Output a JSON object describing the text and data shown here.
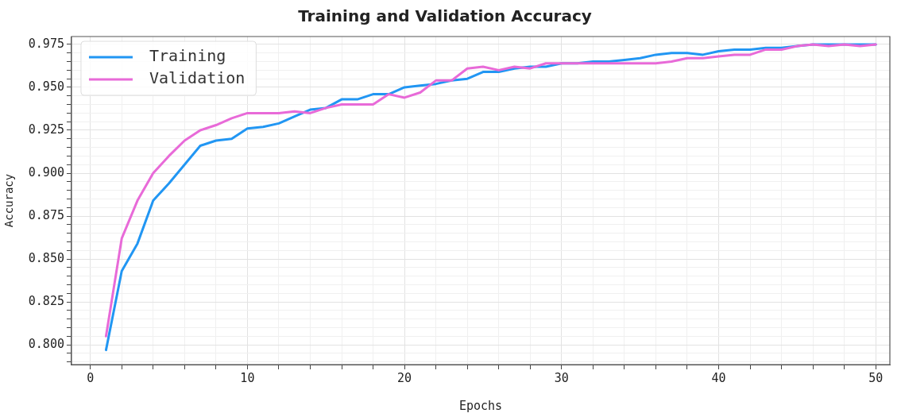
{
  "chart_data": {
    "type": "line",
    "title": "Training and Validation Accuracy",
    "xlabel": "Epochs",
    "ylabel": "Accuracy",
    "x": [
      1,
      2,
      3,
      4,
      5,
      6,
      7,
      8,
      9,
      10,
      11,
      12,
      13,
      14,
      15,
      16,
      17,
      18,
      19,
      20,
      21,
      22,
      23,
      24,
      25,
      26,
      27,
      28,
      29,
      30,
      31,
      32,
      33,
      34,
      35,
      36,
      37,
      38,
      39,
      40,
      41,
      42,
      43,
      44,
      45,
      46,
      47,
      48,
      49,
      50
    ],
    "series": [
      {
        "name": "Training",
        "color": "#2196f3",
        "values": [
          0.797,
          0.843,
          0.859,
          0.884,
          0.894,
          0.905,
          0.916,
          0.919,
          0.92,
          0.926,
          0.927,
          0.929,
          0.933,
          0.937,
          0.938,
          0.943,
          0.943,
          0.946,
          0.946,
          0.95,
          0.951,
          0.952,
          0.954,
          0.955,
          0.959,
          0.959,
          0.961,
          0.962,
          0.962,
          0.964,
          0.964,
          0.965,
          0.965,
          0.966,
          0.967,
          0.969,
          0.97,
          0.97,
          0.969,
          0.971,
          0.972,
          0.972,
          0.973,
          0.973,
          0.974,
          0.975,
          0.975,
          0.975,
          0.975,
          0.975
        ]
      },
      {
        "name": "Validation",
        "color": "#e86ad8",
        "values": [
          0.805,
          0.862,
          0.884,
          0.9,
          0.91,
          0.919,
          0.925,
          0.928,
          0.932,
          0.935,
          0.935,
          0.935,
          0.936,
          0.935,
          0.938,
          0.94,
          0.94,
          0.94,
          0.946,
          0.944,
          0.947,
          0.954,
          0.954,
          0.961,
          0.962,
          0.96,
          0.962,
          0.961,
          0.964,
          0.964,
          0.964,
          0.964,
          0.964,
          0.964,
          0.964,
          0.964,
          0.965,
          0.967,
          0.967,
          0.968,
          0.969,
          0.969,
          0.972,
          0.972,
          0.974,
          0.975,
          0.974,
          0.975,
          0.974,
          0.975
        ]
      }
    ],
    "xlim": [
      -1.2,
      50.9
    ],
    "xticks": [
      0,
      {
        "value": 2,
        "label": null
      },
      {
        "value": 4,
        "label": null
      },
      {
        "value": 6,
        "label": null
      },
      {
        "value": 8,
        "label": null
      },
      10,
      {
        "value": 12,
        "label": null
      },
      {
        "value": 14,
        "label": null
      },
      {
        "value": 16,
        "label": null
      },
      {
        "value": 18,
        "label": null
      },
      20,
      {
        "value": 22,
        "label": null
      },
      {
        "value": 24,
        "label": null
      },
      {
        "value": 26,
        "label": null
      },
      {
        "value": 28,
        "label": null
      },
      30,
      {
        "value": 32,
        "label": null
      },
      {
        "value": 34,
        "label": null
      },
      {
        "value": 36,
        "label": null
      },
      {
        "value": 38,
        "label": null
      },
      40,
      {
        "value": 42,
        "label": null
      },
      {
        "value": 44,
        "label": null
      },
      {
        "value": 46,
        "label": null
      },
      {
        "value": 48,
        "label": null
      },
      50
    ],
    "ylim": [
      0.7885,
      0.9796
    ],
    "yticks": [
      {
        "value": 0.79,
        "label": null
      },
      {
        "value": 0.795,
        "label": null
      },
      {
        "value": 0.8,
        "label": "0.800"
      },
      {
        "value": 0.805,
        "label": null
      },
      {
        "value": 0.81,
        "label": null
      },
      {
        "value": 0.815,
        "label": null
      },
      {
        "value": 0.82,
        "label": null
      },
      {
        "value": 0.825,
        "label": "0.825"
      },
      {
        "value": 0.83,
        "label": null
      },
      {
        "value": 0.835,
        "label": null
      },
      {
        "value": 0.84,
        "label": null
      },
      {
        "value": 0.845,
        "label": null
      },
      {
        "value": 0.85,
        "label": "0.850"
      },
      {
        "value": 0.855,
        "label": null
      },
      {
        "value": 0.86,
        "label": null
      },
      {
        "value": 0.865,
        "label": null
      },
      {
        "value": 0.87,
        "label": null
      },
      {
        "value": 0.875,
        "label": "0.875"
      },
      {
        "value": 0.88,
        "label": null
      },
      {
        "value": 0.885,
        "label": null
      },
      {
        "value": 0.89,
        "label": null
      },
      {
        "value": 0.895,
        "label": null
      },
      {
        "value": 0.9,
        "label": "0.900"
      },
      {
        "value": 0.905,
        "label": null
      },
      {
        "value": 0.91,
        "label": null
      },
      {
        "value": 0.915,
        "label": null
      },
      {
        "value": 0.92,
        "label": null
      },
      {
        "value": 0.925,
        "label": "0.925"
      },
      {
        "value": 0.93,
        "label": null
      },
      {
        "value": 0.935,
        "label": null
      },
      {
        "value": 0.94,
        "label": null
      },
      {
        "value": 0.945,
        "label": null
      },
      {
        "value": 0.95,
        "label": "0.950"
      },
      {
        "value": 0.955,
        "label": null
      },
      {
        "value": 0.96,
        "label": null
      },
      {
        "value": 0.965,
        "label": null
      },
      {
        "value": 0.97,
        "label": null
      },
      {
        "value": 0.975,
        "label": "0.975"
      }
    ],
    "grid": true,
    "legend": "top left",
    "marker": "none",
    "line_style": "solid"
  }
}
